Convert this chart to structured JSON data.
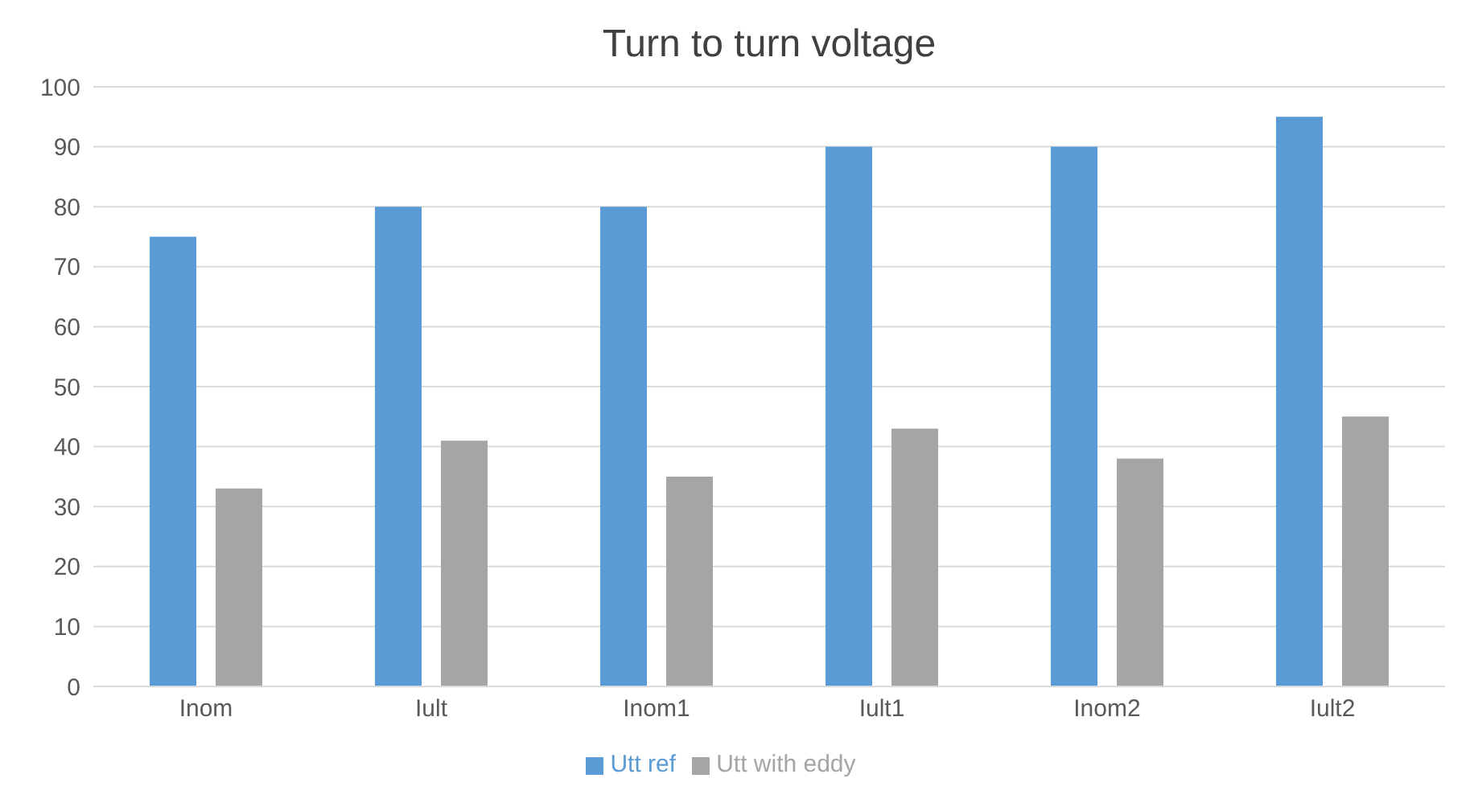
{
  "chart_data": {
    "type": "bar",
    "title": "Turn to turn voltage",
    "categories": [
      "Inom",
      "Iult",
      "Inom1",
      "Iult1",
      "Inom2",
      "Iult2"
    ],
    "series": [
      {
        "name": "Utt ref",
        "color": "#5b9bd5",
        "values": [
          75,
          80,
          80,
          90,
          90,
          95
        ]
      },
      {
        "name": "Utt with eddy",
        "color": "#a5a5a5",
        "values": [
          33,
          41,
          35,
          43,
          38,
          45
        ]
      }
    ],
    "ylim": [
      0,
      100
    ],
    "yticks": [
      0,
      10,
      20,
      30,
      40,
      50,
      60,
      70,
      80,
      90,
      100
    ],
    "grid": "y",
    "legend": "bottom"
  }
}
